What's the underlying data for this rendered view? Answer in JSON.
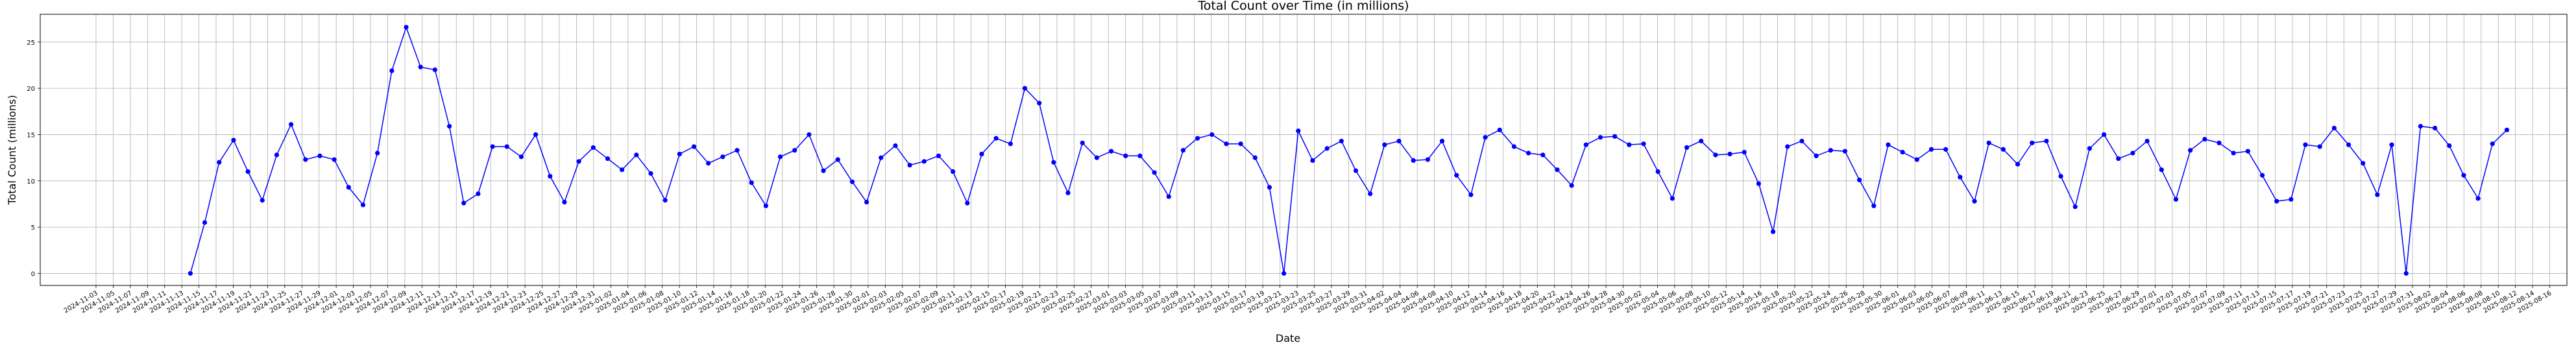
{
  "chart_data": {
    "type": "line",
    "title": "Total Count over Time (in millions)",
    "xlabel": "Date",
    "ylabel": "Total Count (millions)",
    "ylim": [
      -1.3,
      28
    ],
    "yticks": [
      0,
      5,
      10,
      15,
      20,
      25
    ],
    "grid": true,
    "color": "#0000ff",
    "x_start": "2024-11-03",
    "x_end": "2025-08-16",
    "date_ticks": [
      "2024-11-03",
      "2024-11-05",
      "2024-11-07",
      "2024-11-09",
      "2024-11-11",
      "2024-11-13",
      "2024-11-15",
      "2024-11-17",
      "2024-11-19",
      "2024-11-21",
      "2024-11-23",
      "2024-11-25",
      "2024-11-27",
      "2024-11-29",
      "2024-12-01",
      "2024-12-03",
      "2024-12-05",
      "2024-12-07",
      "2024-12-09",
      "2024-12-11",
      "2024-12-13",
      "2024-12-15",
      "2024-12-17",
      "2024-12-19",
      "2024-12-21",
      "2024-12-23",
      "2024-12-25",
      "2024-12-27",
      "2024-12-29",
      "2024-12-31",
      "2025-01-02",
      "2025-01-04",
      "2025-01-06",
      "2025-01-08",
      "2025-01-10",
      "2025-01-12",
      "2025-01-14",
      "2025-01-16",
      "2025-01-18",
      "2025-01-20",
      "2025-01-22",
      "2025-01-24",
      "2025-01-26",
      "2025-01-28",
      "2025-01-30",
      "2025-02-01",
      "2025-02-03",
      "2025-02-05",
      "2025-02-07",
      "2025-02-09",
      "2025-02-11",
      "2025-02-13",
      "2025-02-15",
      "2025-02-17",
      "2025-02-19",
      "2025-02-21",
      "2025-02-23",
      "2025-02-25",
      "2025-02-27",
      "2025-03-01",
      "2025-03-03",
      "2025-03-05",
      "2025-03-07",
      "2025-03-09",
      "2025-03-11",
      "2025-03-13",
      "2025-03-15",
      "2025-03-17",
      "2025-03-19",
      "2025-03-21",
      "2025-03-23",
      "2025-03-25",
      "2025-03-27",
      "2025-03-29",
      "2025-03-31",
      "2025-04-02",
      "2025-04-04",
      "2025-04-06",
      "2025-04-08",
      "2025-04-10",
      "2025-04-12",
      "2025-04-14",
      "2025-04-16",
      "2025-04-18",
      "2025-04-20",
      "2025-04-22",
      "2025-04-24",
      "2025-04-26",
      "2025-04-28",
      "2025-04-30",
      "2025-05-02",
      "2025-05-04",
      "2025-05-06",
      "2025-05-08",
      "2025-05-10",
      "2025-05-12",
      "2025-05-14",
      "2025-05-16",
      "2025-05-18",
      "2025-05-20",
      "2025-05-22",
      "2025-05-24",
      "2025-05-26",
      "2025-05-28",
      "2025-05-30",
      "2025-06-01",
      "2025-06-03",
      "2025-06-05",
      "2025-06-07",
      "2025-06-09",
      "2025-06-11",
      "2025-06-13",
      "2025-06-15",
      "2025-06-17",
      "2025-06-19",
      "2025-06-21",
      "2025-06-23",
      "2025-06-25",
      "2025-06-27",
      "2025-06-29",
      "2025-07-01",
      "2025-07-03",
      "2025-07-05",
      "2025-07-07",
      "2025-07-09",
      "2025-07-11",
      "2025-07-13",
      "2025-07-15",
      "2025-07-17",
      "2025-07-19",
      "2025-07-21",
      "2025-07-23",
      "2025-07-25",
      "2025-07-27",
      "2025-07-29",
      "2025-07-31",
      "2025-08-02",
      "2025-08-04",
      "2025-08-06",
      "2025-08-08",
      "2025-08-10",
      "2025-08-12",
      "2025-08-14",
      "2025-08-16"
    ],
    "series": [
      {
        "values": [
          0,
          5.5,
          12,
          14.4,
          11,
          7.9,
          12.8,
          16.1,
          12.3,
          12.7,
          12.3,
          9.3,
          7.4,
          13,
          21.9,
          26.6,
          22.3,
          22,
          15.9,
          7.6,
          8.6,
          13.7,
          13.7,
          12.6,
          15,
          10.5,
          7.7,
          12.1,
          13.6,
          12.4,
          11.2,
          12.8,
          10.8,
          7.9,
          12.9,
          13.7,
          11.9,
          12.6,
          13.3,
          9.8,
          7.3,
          12.6,
          13.3,
          15,
          11.1,
          12.3,
          9.9,
          7.7,
          12.5,
          13.8,
          11.7,
          12.1,
          12.7,
          11,
          7.6,
          12.9,
          14.6,
          14,
          20,
          18.4,
          12,
          8.7,
          14.1,
          12.5,
          13.2,
          12.7,
          12.7,
          10.9,
          8.3,
          13.3,
          14.6,
          15,
          14,
          14,
          12.5,
          9.3,
          0,
          15.4,
          12.2,
          13.5,
          14.3,
          11.1,
          8.6,
          13.9,
          14.3,
          12.2,
          12.3,
          14.3,
          10.6,
          8.5,
          14.7,
          15.5,
          13.7,
          13,
          12.8,
          11.2,
          9.5,
          13.9,
          14.7,
          14.8,
          13.9,
          14,
          11,
          8.1,
          13.6,
          14.3,
          12.8,
          12.9,
          13.1,
          9.7,
          4.5,
          13.7,
          14.3,
          12.7,
          13.3,
          13.2,
          10.1,
          7.3,
          13.9,
          13.1,
          12.3,
          13.4,
          13.4,
          10.4,
          7.8,
          14.1,
          13.4,
          11.8,
          14.1,
          14.3,
          10.5,
          7.2,
          13.5,
          15,
          12.4,
          13,
          14.3,
          11.2,
          8,
          13.3,
          14.5,
          14.1,
          13,
          13.2,
          10.6,
          7.8,
          8,
          13.9,
          13.7,
          15.7,
          13.9,
          11.9,
          8.5,
          13.9,
          0,
          15.9,
          15.7,
          13.8,
          10.6,
          8.1,
          14,
          15.5
        ]
      }
    ]
  }
}
